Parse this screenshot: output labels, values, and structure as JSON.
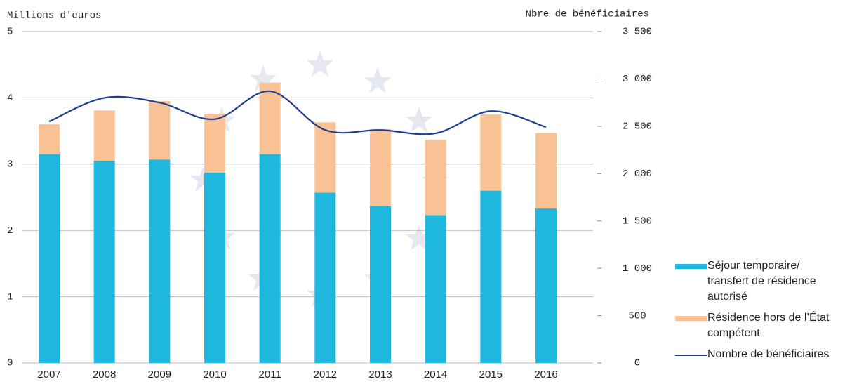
{
  "chart_data": {
    "type": "bar",
    "y_label": "Millions d'euros",
    "y2_label": "Nbre de bénéficiaires",
    "categories": [
      "2007",
      "2008",
      "2009",
      "2010",
      "2011",
      "2012",
      "2013",
      "2014",
      "2015",
      "2016"
    ],
    "stacked": true,
    "series": [
      {
        "name": "Séjour temporaire/ transfert de résidence autorisé",
        "color": "#1eb8de",
        "type": "bar",
        "values": [
          3.15,
          3.05,
          3.07,
          2.87,
          3.15,
          2.57,
          2.37,
          2.23,
          2.6,
          2.33
        ]
      },
      {
        "name": "Résidence hors de l’État compétent",
        "color": "#f8c295",
        "type": "bar",
        "values": [
          0.45,
          0.76,
          0.88,
          0.89,
          1.08,
          1.06,
          1.16,
          1.14,
          1.15,
          1.14
        ]
      },
      {
        "name": "Nombre de bénéficiaires",
        "color": "#1f3f8f",
        "type": "line",
        "axis": "y2",
        "values": [
          2550,
          2800,
          2750,
          2575,
          2870,
          2460,
          2460,
          2425,
          2660,
          2490
        ]
      }
    ],
    "ylim": [
      0,
      5
    ],
    "yticks": [
      0,
      1,
      2,
      3,
      4,
      5
    ],
    "y2lim": [
      0,
      3500
    ],
    "y2ticks": [
      0,
      500,
      {
        "value": 1000,
        "label": "1 000"
      },
      {
        "value": 1500,
        "label": "1 500"
      },
      {
        "value": 2000,
        "label": "2 000"
      },
      {
        "value": 2500,
        "label": "2 500"
      },
      {
        "value": 3000,
        "label": "3 000"
      },
      {
        "value": 3500,
        "label": "3 500"
      }
    ],
    "grid": true
  }
}
